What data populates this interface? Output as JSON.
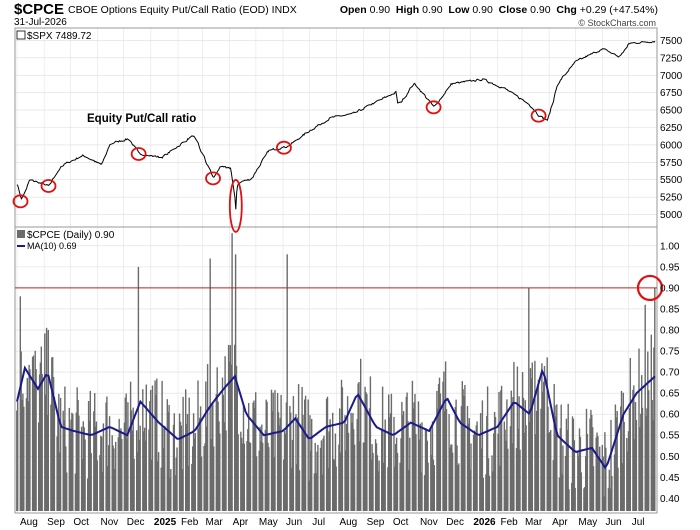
{
  "header": {
    "symbol": "$CPCE",
    "description": "CBOE Options Equity Put/Call Ratio (EOD)",
    "exchange": "INDX",
    "date": "31-Jul-2026",
    "open_label": "Open",
    "open": "0.90",
    "high_label": "High",
    "high": "0.90",
    "low_label": "Low",
    "low": "0.90",
    "close_label": "Close",
    "close": "0.90",
    "chg_label": "Chg",
    "chg": "+0.29 (+47.54%)",
    "watermark": "© StockCharts.com"
  },
  "chart_data": [
    {
      "type": "line",
      "legend": "$SPX 7489.72",
      "annotation": "Equity Put/Call ratio",
      "ylim": [
        4850,
        7650
      ],
      "yticks": [
        5000,
        5250,
        5500,
        5750,
        6000,
        6250,
        6500,
        6750,
        7000,
        7250,
        7500
      ],
      "x": [
        "2024-08-01",
        "2024-08-05",
        "2024-08-15",
        "2024-09-06",
        "2024-09-20",
        "2024-10-15",
        "2024-11-05",
        "2024-11-15",
        "2024-12-06",
        "2024-12-18",
        "2025-01-13",
        "2025-02-18",
        "2025-03-13",
        "2025-03-20",
        "2025-04-02",
        "2025-04-08",
        "2025-04-09",
        "2025-04-25",
        "2025-05-15",
        "2025-06-06",
        "2025-06-30",
        "2025-07-25",
        "2025-08-20",
        "2025-09-15",
        "2025-10-08",
        "2025-10-10",
        "2025-10-28",
        "2025-11-20",
        "2025-12-10",
        "2026-01-15",
        "2026-02-10",
        "2026-03-09",
        "2026-03-20",
        "2026-03-30",
        "2026-04-10",
        "2026-05-01",
        "2026-06-01",
        "2026-06-20",
        "2026-07-01",
        "2026-07-31"
      ],
      "y": [
        5450,
        5190,
        5500,
        5410,
        5700,
        5850,
        5710,
        6020,
        6090,
        5870,
        5820,
        6140,
        5520,
        5680,
        5670,
        4980,
        5460,
        5510,
        5920,
        5980,
        6200,
        6390,
        6450,
        6620,
        6760,
        6550,
        6890,
        6540,
        6880,
        6940,
        6800,
        6580,
        6420,
        6350,
        6880,
        7200,
        7380,
        7260,
        7460,
        7490
      ],
      "circled_points": [
        {
          "x": "2024-08-05",
          "y": 5190
        },
        {
          "x": "2024-09-06",
          "y": 5410
        },
        {
          "x": "2024-12-18",
          "y": 5870
        },
        {
          "x": "2025-03-13",
          "y": 5520
        },
        {
          "x": "2025-04-08",
          "y": 4980
        },
        {
          "x": "2025-06-02",
          "y": 5960
        },
        {
          "x": "2025-11-20",
          "y": 6540
        },
        {
          "x": "2026-03-20",
          "y": 6420
        }
      ]
    },
    {
      "type": "bar",
      "legend": "$CPCE (Daily) 0.90",
      "overlay_legend": "MA(10) 0.69",
      "ylim": [
        0.37,
        1.04
      ],
      "yticks": [
        0.4,
        0.45,
        0.5,
        0.55,
        0.6,
        0.65,
        0.7,
        0.75,
        0.8,
        0.85,
        0.9,
        0.95,
        1.0
      ],
      "reference_line": 0.9,
      "circled_value": 0.9,
      "x_start": "2024-08-01",
      "x_end": "2026-07-31",
      "spikes": [
        {
          "x": "2024-08-05",
          "y": 0.88
        },
        {
          "x": "2024-09-06",
          "y": 0.8
        },
        {
          "x": "2024-12-18",
          "y": 0.95
        },
        {
          "x": "2025-03-10",
          "y": 0.97
        },
        {
          "x": "2025-04-04",
          "y": 1.03
        },
        {
          "x": "2025-04-08",
          "y": 0.98
        },
        {
          "x": "2025-06-06",
          "y": 0.98
        },
        {
          "x": "2026-03-09",
          "y": 0.9
        },
        {
          "x": "2026-07-20",
          "y": 0.86
        },
        {
          "x": "2026-07-31",
          "y": 0.9
        }
      ],
      "ma_anchors": {
        "x": [
          "2024-08-01",
          "2024-08-10",
          "2024-08-25",
          "2024-09-05",
          "2024-09-20",
          "2024-10-05",
          "2024-10-25",
          "2024-11-15",
          "2024-12-05",
          "2024-12-20",
          "2025-01-10",
          "2025-02-01",
          "2025-02-20",
          "2025-03-10",
          "2025-03-25",
          "2025-04-07",
          "2025-04-20",
          "2025-05-10",
          "2025-06-01",
          "2025-06-15",
          "2025-07-01",
          "2025-07-20",
          "2025-08-10",
          "2025-08-25",
          "2025-09-15",
          "2025-10-05",
          "2025-10-25",
          "2025-11-15",
          "2025-12-05",
          "2025-12-20",
          "2026-01-10",
          "2026-02-01",
          "2026-02-20",
          "2026-03-10",
          "2026-03-25",
          "2026-04-10",
          "2026-05-01",
          "2026-05-20",
          "2026-06-05",
          "2026-06-25",
          "2026-07-10",
          "2026-07-31"
        ],
        "y": [
          0.63,
          0.71,
          0.66,
          0.7,
          0.57,
          0.56,
          0.55,
          0.57,
          0.55,
          0.63,
          0.58,
          0.54,
          0.56,
          0.62,
          0.66,
          0.69,
          0.6,
          0.55,
          0.56,
          0.59,
          0.54,
          0.57,
          0.58,
          0.65,
          0.57,
          0.55,
          0.58,
          0.56,
          0.64,
          0.58,
          0.55,
          0.57,
          0.63,
          0.6,
          0.71,
          0.55,
          0.51,
          0.52,
          0.47,
          0.6,
          0.65,
          0.69
        ]
      }
    }
  ],
  "x_axis_labels": [
    "Aug",
    "Sep",
    "Oct",
    "Nov",
    "Dec",
    "2025",
    "Feb",
    "Mar",
    "Apr",
    "May",
    "Jun",
    "Jul",
    "Aug",
    "Sep",
    "Oct",
    "Nov",
    "Dec",
    "2026",
    "Feb",
    "Mar",
    "Apr",
    "May",
    "Jun",
    "Jul"
  ],
  "colors": {
    "price_line": "#000000",
    "bars": "#6b6b6b",
    "ma_line": "#1a1a8c",
    "circle": "#e01010",
    "reference": "#c02020",
    "grid": "#dddddd"
  }
}
